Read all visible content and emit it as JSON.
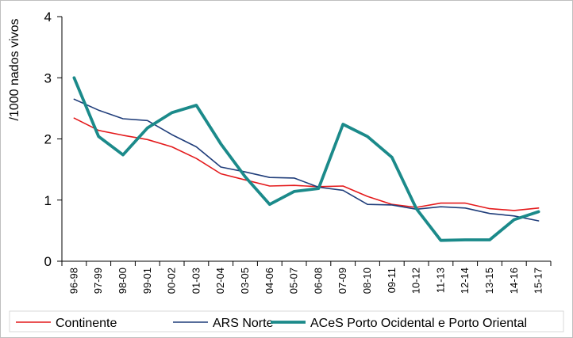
{
  "chart_data": {
    "type": "line",
    "ylabel": "/1000 nados vivos",
    "xlabel": "",
    "ylim": [
      0,
      4
    ],
    "yticks": [
      "0",
      "1",
      "2",
      "3",
      "4"
    ],
    "grid": false,
    "legend_position": "bottom",
    "categories": [
      "96-98",
      "97-99",
      "98-00",
      "99-01",
      "00-02",
      "01-03",
      "02-04",
      "03-05",
      "04-06",
      "05-07",
      "06-08",
      "07-09",
      "08-10",
      "09-11",
      "10-12",
      "11-13",
      "12-14",
      "13-15",
      "14-16",
      "15-17"
    ],
    "series": [
      {
        "name": "Continente",
        "color": "#e41a1c",
        "width": 1.6,
        "values": [
          2.34,
          2.14,
          2.06,
          1.99,
          1.87,
          1.68,
          1.43,
          1.33,
          1.23,
          1.24,
          1.22,
          1.23,
          1.06,
          0.93,
          0.88,
          0.95,
          0.95,
          0.86,
          0.83,
          0.87
        ]
      },
      {
        "name": "ARS Norte",
        "color": "#1f3d7a",
        "width": 1.6,
        "values": [
          2.65,
          2.47,
          2.33,
          2.3,
          2.07,
          1.87,
          1.54,
          1.46,
          1.37,
          1.36,
          1.21,
          1.16,
          0.93,
          0.92,
          0.85,
          0.89,
          0.87,
          0.78,
          0.74,
          0.66
        ]
      },
      {
        "name": "ACeS Porto Ocidental e Porto Oriental",
        "color": "#1b8a8a",
        "width": 3.8,
        "values": [
          3.0,
          2.04,
          1.74,
          2.18,
          2.43,
          2.55,
          1.92,
          1.38,
          0.93,
          1.14,
          1.19,
          2.24,
          2.04,
          1.7,
          0.86,
          0.34,
          0.35,
          0.35,
          0.68,
          0.81
        ]
      }
    ]
  }
}
